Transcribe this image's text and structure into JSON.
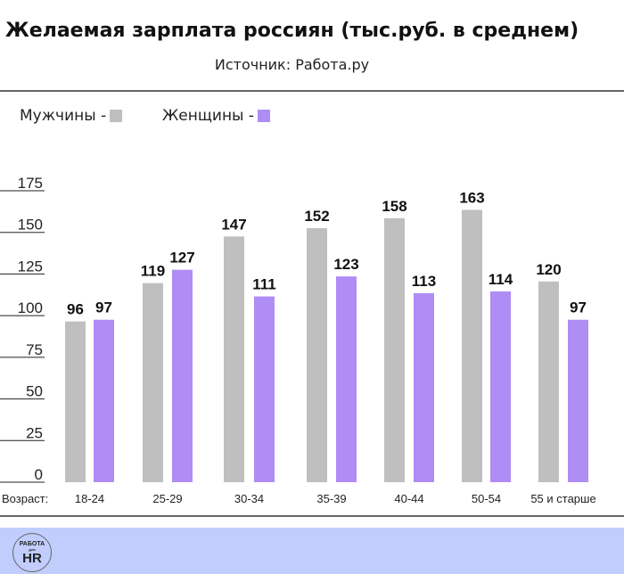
{
  "chart_data": {
    "type": "bar",
    "title": "Желаемая зарплата россиян (тыс.руб. в среднем)",
    "subtitle": "Источник: Работа.ру",
    "xlabel": "Возраст:",
    "categories": [
      "18-24",
      "25-29",
      "30-34",
      "35-39",
      "40-44",
      "50-54",
      "55 и старше"
    ],
    "series": [
      {
        "name": "Мужчины -",
        "color": "#c0bfbf",
        "values": [
          96,
          119,
          147,
          152,
          158,
          163,
          120
        ]
      },
      {
        "name": "Женщины -",
        "color": "#b08cf5",
        "values": [
          97,
          127,
          111,
          123,
          113,
          114,
          97
        ]
      }
    ],
    "yticks": [
      "0",
      "25",
      "50",
      "75",
      "100",
      "125",
      "150",
      "175"
    ],
    "ylim": [
      0,
      175
    ],
    "legend": "top-left",
    "grid": false
  },
  "footer": {
    "logo_top": "РАБОТА",
    "logo_mid": "для",
    "logo_bottom": "HR",
    "bg": "#c1cdfc"
  }
}
